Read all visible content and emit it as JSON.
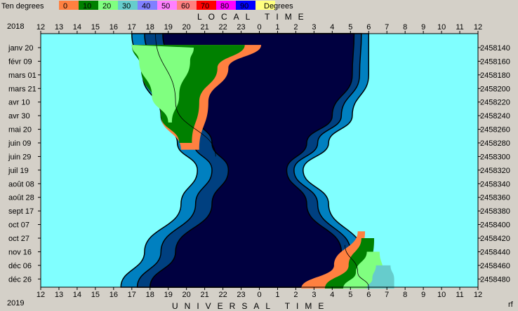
{
  "chart_data": {
    "type": "area",
    "legend": {
      "title": "Ten degrees",
      "unit": "Degrees",
      "items": [
        {
          "label": "0",
          "color": "#ff8040"
        },
        {
          "label": "10",
          "color": "#008000"
        },
        {
          "label": "20",
          "color": "#80ff80"
        },
        {
          "label": "30",
          "color": "#66cccc"
        },
        {
          "label": "40",
          "color": "#8080ff"
        },
        {
          "label": "50",
          "color": "#ff80ff"
        },
        {
          "label": "60",
          "color": "#ff8080"
        },
        {
          "label": "70",
          "color": "#ff0000"
        },
        {
          "label": "80",
          "color": "#ff00ff"
        },
        {
          "label": "90",
          "color": "#0000ff"
        },
        {
          "label": "",
          "color": "#ffff80"
        }
      ]
    },
    "top_axis_title": "LOCAL TIME",
    "bottom_axis_title": "UNIVERSAL TIME",
    "year_top": "2018",
    "year_bottom": "2019",
    "corner_label": "rf",
    "x_ticks": [
      "12",
      "13",
      "14",
      "15",
      "16",
      "17",
      "18",
      "19",
      "20",
      "21",
      "22",
      "23",
      "0",
      "1",
      "2",
      "3",
      "4",
      "5",
      "6",
      "7",
      "8",
      "9",
      "10",
      "11",
      "12"
    ],
    "x_domain_hours": [
      12,
      36
    ],
    "y_dates": [
      "janv 20",
      "févr 09",
      "mars 01",
      "mars 21",
      "avr 10",
      "avr 30",
      "mai 20",
      "juin 09",
      "juin 29",
      "juil 19",
      "août 08",
      "août 28",
      "sept 17",
      "oct 07",
      "oct 27",
      "nov 16",
      "déc 06",
      "déc 26"
    ],
    "y_julian": [
      "2458140",
      "2458160",
      "2458180",
      "2458200",
      "2458220",
      "2458240",
      "2458260",
      "2458280",
      "2458300",
      "2458320",
      "2458340",
      "2458360",
      "2458380",
      "2458400",
      "2458420",
      "2458440",
      "2458460",
      "2458480"
    ],
    "y_domain_days": [
      0,
      350
    ],
    "series": [
      {
        "color": "#0080c0",
        "x_left": [
          17.0,
          17.6,
          18.6,
          19.5,
          20.6,
          19.7,
          17.7,
          16.4
        ],
        "x_right": [
          30.0,
          30.0,
          29.1,
          27.8,
          26.4,
          27.8,
          29.6,
          30.4
        ]
      },
      {
        "color": "#004080",
        "x_left": [
          17.7,
          18.3,
          19.5,
          20.4,
          21.4,
          20.5,
          18.6,
          17.3
        ],
        "x_right": [
          29.6,
          29.5,
          28.5,
          27.2,
          25.9,
          27.2,
          29.0,
          29.8
        ]
      },
      {
        "color": "#000040",
        "x_left": [
          18.7,
          19.3,
          20.5,
          21.4,
          22.3,
          21.4,
          19.4,
          18.0
        ],
        "x_right": [
          29.2,
          29.1,
          28.0,
          26.6,
          25.5,
          26.6,
          28.5,
          29.2
        ]
      }
    ],
    "y_for_series_days": [
      0,
      40,
      100,
      140,
      180,
      230,
      300,
      350
    ],
    "twilight_bands": [
      {
        "side": "evening",
        "color": "#008000",
        "x_day": [
          [
            17.0,
            0
          ],
          [
            19.1,
            0
          ],
          [
            18.4,
            40
          ],
          [
            19.4,
            100
          ],
          [
            20.2,
            140
          ],
          [
            19.5,
            150
          ]
        ],
        "x_dark": [
          [
            22.9,
            0
          ],
          [
            21.9,
            30
          ],
          [
            21.0,
            80
          ],
          [
            20.5,
            140
          ],
          [
            20.2,
            150
          ]
        ]
      },
      {
        "side": "morning",
        "color": "#008000",
        "x_day": [
          [
            30.3,
            350
          ],
          [
            29.6,
            290
          ],
          [
            28.3,
            230
          ],
          [
            27.8,
            200
          ]
        ],
        "x_dark": [
          [
            28.2,
            350
          ],
          [
            27.0,
            290
          ],
          [
            26.2,
            230
          ],
          [
            26.4,
            190
          ]
        ]
      }
    ]
  }
}
